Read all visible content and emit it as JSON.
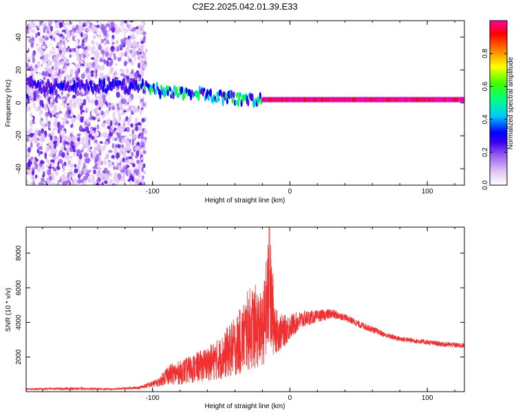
{
  "page": {
    "title": "C2E2.2025.042.01.39.E33"
  },
  "chart_data": [
    {
      "type": "heatmap",
      "title": "C2E2.2025.042.01.39.E33",
      "xlabel": "Height of straight line (km)",
      "ylabel": "Frequency (Hz)",
      "xlim": [
        -192,
        127
      ],
      "ylim": [
        -50,
        50
      ],
      "xticks": [
        -100,
        0,
        100
      ],
      "yticks": [
        -40,
        -20,
        0,
        20,
        40
      ],
      "colorbar": {
        "label": "Normalized spectral amplitude",
        "range": [
          0,
          1
        ],
        "ticks": [
          "0.0",
          "0.2",
          "0.4",
          "0.6",
          "0.8"
        ],
        "colors": [
          "#ffffff",
          "#e3c8f5",
          "#9b5ef0",
          "#5a12e8",
          "#0000ff",
          "#00c8ff",
          "#00ff40",
          "#ffff00",
          "#ff8000",
          "#ff0000",
          "#ff00a0"
        ]
      },
      "ridge": {
        "description_points": [
          {
            "x": -190,
            "y": 10
          },
          {
            "x": -110,
            "y": 10
          },
          {
            "x": -80,
            "y": 6
          },
          {
            "x": -60,
            "y": 5
          },
          {
            "x": -35,
            "y": 2
          },
          {
            "x": -20,
            "y": 2
          },
          {
            "x": 0,
            "y": 2
          },
          {
            "x": 127,
            "y": 2
          }
        ],
        "noise_region_x": [
          -192,
          -105
        ]
      }
    },
    {
      "type": "line",
      "xlabel": "Height of straight line (km)",
      "ylabel": "SNR (10 * v/v)",
      "xlim": [
        -192,
        127
      ],
      "ylim": [
        0,
        9500
      ],
      "xticks": [
        -100,
        0,
        100
      ],
      "yticks": [
        2000,
        4000,
        6000,
        8000
      ],
      "series": [
        {
          "color": "#f03030",
          "envelope": {
            "x": [
              -192,
              -160,
              -130,
              -110,
              -95,
              -90,
              -80,
              -70,
              -60,
              -50,
              -45,
              -40,
              -35,
              -30,
              -25,
              -20,
              -15,
              -10,
              -5,
              0,
              5,
              10,
              20,
              30,
              40,
              50,
              60,
              70,
              80,
              90,
              100,
              110,
              127
            ],
            "low": [
              100,
              100,
              100,
              150,
              300,
              400,
              400,
              500,
              600,
              700,
              800,
              900,
              1000,
              1200,
              1300,
              1500,
              1800,
              2200,
              2500,
              3000,
              3400,
              3700,
              4000,
              4200,
              4100,
              3700,
              3400,
              3100,
              2900,
              2800,
              2700,
              2600,
              2500
            ],
            "high": [
              200,
              250,
              200,
              300,
              800,
              1500,
              1800,
              2200,
              2600,
              3200,
              3800,
              4300,
              5000,
              6000,
              6200,
              5500,
              9500,
              4800,
              4400,
              4500,
              4600,
              4700,
              4700,
              4800,
              4500,
              4100,
              3800,
              3400,
              3200,
              3100,
              3000,
              2900,
              2800
            ]
          }
        }
      ]
    }
  ]
}
